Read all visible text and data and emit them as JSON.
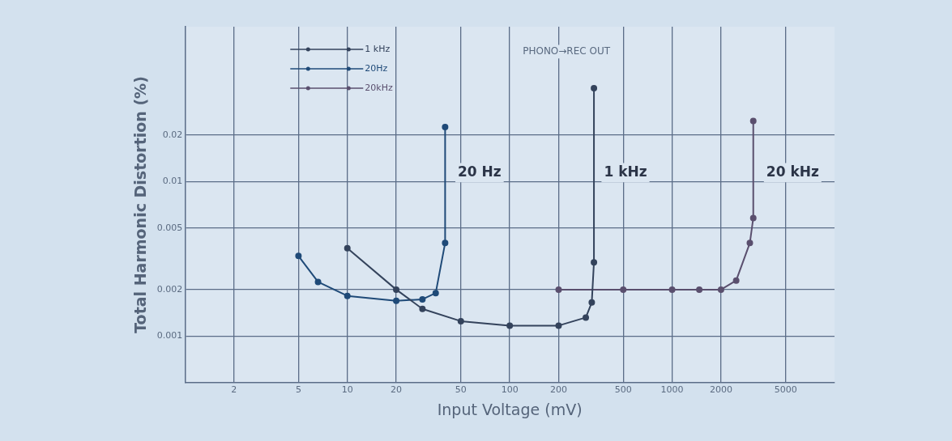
{
  "chart_data": {
    "type": "line",
    "xlabel": "Input Voltage (mV)",
    "ylabel": "Total Harmonic Distortion (%)",
    "log": "xy",
    "xlim": [
      1,
      10000
    ],
    "ylim": [
      0.0005,
      0.1
    ],
    "xticks": [
      2,
      5,
      10,
      20,
      50,
      100,
      200,
      500,
      1000,
      2000,
      5000
    ],
    "yticks": [
      0.001,
      0.002,
      0.005,
      0.01,
      0.02
    ],
    "grid": true,
    "legend": "top left",
    "marker": "circle",
    "line_style": "solid",
    "series": [
      {
        "name": "1 kHz",
        "color": "#34435c",
        "x": [
          10,
          20,
          29,
          50,
          100,
          200,
          294,
          320,
          330,
          330
        ],
        "values": [
          0.0037,
          0.002,
          0.0015,
          0.00125,
          0.00117,
          0.00117,
          0.00132,
          0.00165,
          0.003,
          0.04
        ]
      },
      {
        "name": "20Hz",
        "color": "#1f4a78",
        "x": [
          5,
          6.6,
          10,
          20,
          29,
          35,
          40,
          40
        ],
        "values": [
          0.0033,
          0.00224,
          0.00182,
          0.00169,
          0.00173,
          0.0019,
          0.004,
          0.0225
        ]
      },
      {
        "name": "20kHz",
        "color": "#5a4f6e",
        "x": [
          200,
          500,
          1000,
          1470,
          2000,
          2480,
          3010,
          3160,
          3160
        ],
        "values": [
          0.002,
          0.002,
          0.002,
          0.002,
          0.002,
          0.00229,
          0.004,
          0.0058,
          0.0246
        ]
      }
    ],
    "annotations": [
      "PHONO→REC OUT",
      "20 Hz",
      "1 kHz",
      "20 kHz"
    ]
  }
}
